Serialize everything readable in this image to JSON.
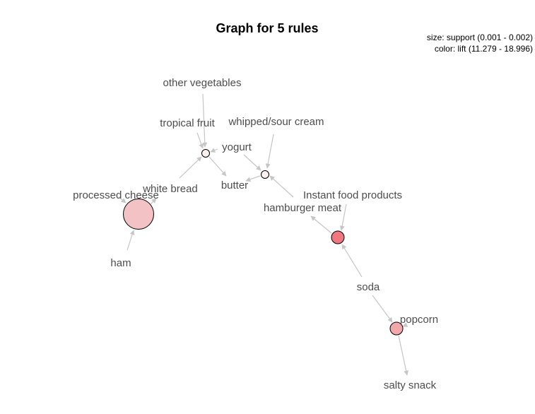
{
  "title": "Graph for 5 rules",
  "legend": {
    "size": "size: support (0.001 - 0.002)",
    "color": "color: lift (11.279 - 18.996)"
  },
  "items": {
    "other_vegetables": "other vegetables",
    "tropical_fruit": "tropical fruit",
    "whipped_sour_cream": "whipped/sour cream",
    "yogurt": "yogurt",
    "white_bread": "white bread",
    "butter": "butter",
    "processed_cheese": "processed cheese",
    "instant_food_products": "Instant food products",
    "hamburger_meat": "hamburger meat",
    "ham": "ham",
    "soda": "soda",
    "popcorn": "popcorn",
    "salty_snack": "salty snack"
  },
  "rules": [
    {
      "id": "rule-1",
      "lhs": [
        "other vegetables",
        "tropical fruit",
        "yogurt",
        "white bread"
      ],
      "rhs": [
        "butter"
      ],
      "color": "#fdf0f0"
    },
    {
      "id": "rule-2",
      "lhs": [
        "whipped/sour cream",
        "yogurt",
        "Instant food products"
      ],
      "rhs": [
        "butter"
      ],
      "color": "#fdf0f0"
    },
    {
      "id": "rule-3",
      "lhs": [
        "ham",
        "processed cheese"
      ],
      "rhs": [
        "white bread"
      ],
      "color": "#f2c2c4"
    },
    {
      "id": "rule-4",
      "lhs": [
        "Instant food products",
        "soda"
      ],
      "rhs": [
        "hamburger meat"
      ],
      "color": "#ef7880"
    },
    {
      "id": "rule-5",
      "lhs": [
        "soda",
        "popcorn"
      ],
      "rhs": [
        "salty snack"
      ],
      "color": "#f2a8ab"
    }
  ]
}
